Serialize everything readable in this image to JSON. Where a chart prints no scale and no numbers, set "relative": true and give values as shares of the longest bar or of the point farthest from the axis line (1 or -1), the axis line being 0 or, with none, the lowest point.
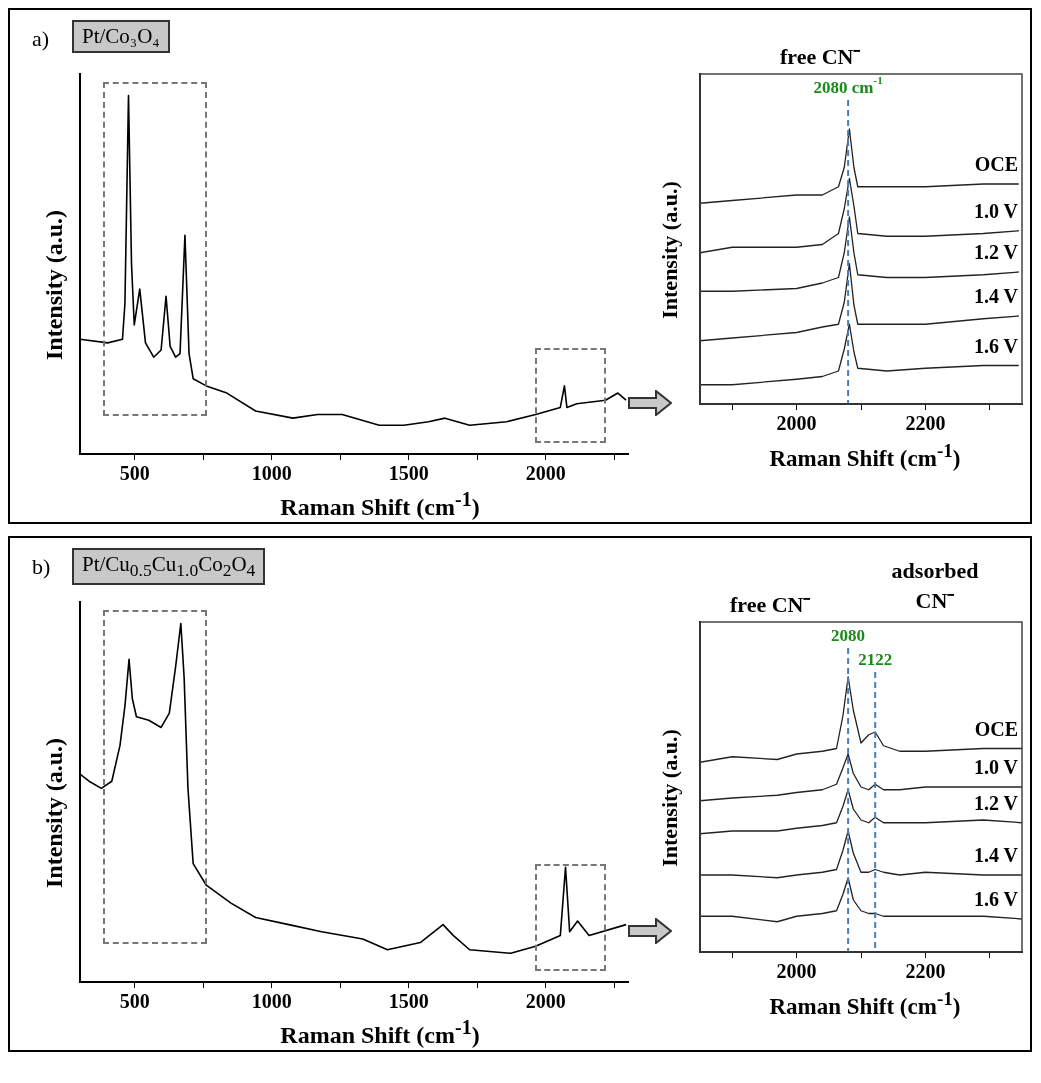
{
  "chart_data": [
    {
      "type": "line",
      "title": "Pt/Co₃O₄",
      "annotations": [
        "a)"
      ],
      "xlabel": "Raman Shift (cm$^{-1}$)",
      "ylabel": "Intensity (a.u.)",
      "relative": true,
      "xlim": [
        300,
        2300
      ],
      "xticks": [
        500,
        {
          "value": 750,
          "label": null
        },
        1000,
        {
          "value": 1250,
          "label": null
        },
        1500,
        {
          "value": 1750,
          "label": null
        },
        2000,
        {
          "value": 2250,
          "label": null
        }
      ],
      "grid": false,
      "legend": false,
      "marker": "none",
      "line_style": "solid",
      "series": [
        {
          "color": "#000000",
          "x": [
            300,
            401,
            455,
            464,
            477,
            488,
            498,
            518,
            539,
            569,
            596,
            614,
            629,
            649,
            665,
            683,
            698,
            713,
            761,
            836,
            941,
            1077,
            1167,
            1257,
            1392,
            1482,
            1572,
            1632,
            1722,
            1857,
            1963,
            2053,
            2068,
            2077,
            2113,
            2218,
            2263,
            2293
          ],
          "values": [
            0.32,
            0.31,
            0.32,
            0.42,
            1.0,
            0.53,
            0.36,
            0.46,
            0.31,
            0.27,
            0.29,
            0.44,
            0.3,
            0.27,
            0.28,
            0.61,
            0.28,
            0.21,
            0.19,
            0.17,
            0.12,
            0.1,
            0.11,
            0.11,
            0.08,
            0.08,
            0.09,
            0.1,
            0.08,
            0.09,
            0.11,
            0.13,
            0.19,
            0.13,
            0.14,
            0.15,
            0.17,
            0.15
          ]
        }
      ]
    },
    {
      "type": "line",
      "title": "free CN⁻",
      "xlabel": "Raman Shift (cm$^{-1}$)",
      "ylabel": "Intensity (a.u.)",
      "relative": true,
      "xlim": [
        1850,
        2350
      ],
      "xticks": [
        {
          "value": 1900,
          "label": null
        },
        2000,
        {
          "value": 2100,
          "label": null
        },
        2200,
        {
          "value": 2300,
          "label": null
        }
      ],
      "grid": false,
      "legend": false,
      "marker": "none",
      "line_style": "solid",
      "ref_lines": [
        {
          "axis": "x",
          "value": 2080,
          "label": "2080 cm$^{-1}$",
          "color": "#4a7ebb",
          "line_style": "dashed"
        }
      ],
      "series": [
        {
          "name": "OCE",
          "color": "#222222",
          "x": [
            1850,
            1900,
            2000,
            2040,
            2065,
            2074,
            2082,
            2089,
            2095,
            2140,
            2200,
            2290,
            2345
          ],
          "values": [
            0.73,
            0.74,
            0.76,
            0.76,
            0.79,
            0.86,
            1.0,
            0.86,
            0.79,
            0.79,
            0.79,
            0.8,
            0.8
          ]
        },
        {
          "name": "1.0 V",
          "color": "#222222",
          "x": [
            1850,
            1900,
            2000,
            2040,
            2065,
            2074,
            2082,
            2089,
            2095,
            2140,
            2200,
            2290,
            2345
          ],
          "values": [
            0.55,
            0.57,
            0.57,
            0.58,
            0.62,
            0.71,
            0.82,
            0.72,
            0.62,
            0.61,
            0.61,
            0.62,
            0.63
          ]
        },
        {
          "name": "1.2 V",
          "color": "#222222",
          "x": [
            1850,
            1900,
            2000,
            2040,
            2065,
            2074,
            2082,
            2089,
            2095,
            2140,
            2200,
            2290,
            2345
          ],
          "values": [
            0.41,
            0.41,
            0.42,
            0.44,
            0.46,
            0.55,
            0.68,
            0.55,
            0.47,
            0.46,
            0.46,
            0.47,
            0.48
          ]
        },
        {
          "name": "1.4 V",
          "color": "#222222",
          "x": [
            1850,
            1900,
            2000,
            2040,
            2065,
            2074,
            2082,
            2089,
            2095,
            2140,
            2200,
            2290,
            2345
          ],
          "values": [
            0.23,
            0.24,
            0.26,
            0.28,
            0.29,
            0.37,
            0.51,
            0.36,
            0.29,
            0.29,
            0.29,
            0.31,
            0.32
          ]
        },
        {
          "name": "1.6 V",
          "color": "#222222",
          "x": [
            1850,
            1900,
            2000,
            2040,
            2065,
            2074,
            2082,
            2089,
            2095,
            2140,
            2200,
            2290,
            2345
          ],
          "values": [
            0.07,
            0.07,
            0.09,
            0.1,
            0.12,
            0.2,
            0.29,
            0.19,
            0.13,
            0.12,
            0.13,
            0.14,
            0.14
          ]
        }
      ]
    },
    {
      "type": "line",
      "title": "Pt/Cu$_{0.5}$Cu$_{1.0}$Co$_{2}$O$_{4}$",
      "annotations": [
        "b)"
      ],
      "xlabel": "Raman Shift (cm$^{-1}$)",
      "ylabel": "Intensity (a.u.)",
      "relative": true,
      "xlim": [
        300,
        2300
      ],
      "xticks": [
        500,
        {
          "value": 750,
          "label": null
        },
        1000,
        {
          "value": 1250,
          "label": null
        },
        1500,
        {
          "value": 1750,
          "label": null
        },
        2000,
        {
          "value": 2250,
          "label": null
        }
      ],
      "grid": false,
      "legend": false,
      "marker": "none",
      "line_style": "solid",
      "series": [
        {
          "color": "#000000",
          "x": [
            300,
            333,
            378,
            416,
            446,
            464,
            479,
            491,
            506,
            551,
            596,
            626,
            649,
            668,
            680,
            694,
            713,
            761,
            851,
            941,
            1062,
            1182,
            1332,
            1422,
            1542,
            1625,
            1662,
            1722,
            1872,
            1963,
            2053,
            2072,
            2087,
            2116,
            2158,
            2293
          ],
          "values": [
            0.58,
            0.56,
            0.54,
            0.56,
            0.66,
            0.77,
            0.9,
            0.79,
            0.74,
            0.73,
            0.71,
            0.75,
            0.88,
            1.0,
            0.85,
            0.54,
            0.33,
            0.27,
            0.22,
            0.18,
            0.16,
            0.14,
            0.12,
            0.09,
            0.11,
            0.16,
            0.13,
            0.09,
            0.08,
            0.1,
            0.13,
            0.32,
            0.14,
            0.17,
            0.13,
            0.16
          ]
        }
      ]
    },
    {
      "type": "line",
      "title": "free CN⁻",
      "subtitle": "adsorbed CN⁻",
      "xlabel": "Raman Shift (cm$^{-1}$)",
      "ylabel": "Intensity (a.u.)",
      "relative": true,
      "xlim": [
        1850,
        2350
      ],
      "xticks": [
        {
          "value": 1900,
          "label": null
        },
        2000,
        {
          "value": 2100,
          "label": null
        },
        2200,
        {
          "value": 2300,
          "label": null
        }
      ],
      "grid": false,
      "legend": false,
      "marker": "none",
      "line_style": "solid",
      "ref_lines": [
        {
          "axis": "x",
          "value": 2080,
          "label": "2080",
          "color": "#4a7ebb",
          "line_style": "dashed"
        },
        {
          "axis": "x",
          "value": 2122,
          "label": "2122",
          "color": "#4a7ebb",
          "line_style": "dashed"
        }
      ],
      "series": [
        {
          "name": "OCE",
          "color": "#222222",
          "x": [
            1850,
            1900,
            1970,
            2000,
            2040,
            2062,
            2072,
            2080,
            2088,
            2100,
            2112,
            2122,
            2135,
            2160,
            2200,
            2290,
            2350
          ],
          "values": [
            0.69,
            0.71,
            0.7,
            0.72,
            0.73,
            0.74,
            0.86,
            1.0,
            0.88,
            0.76,
            0.79,
            0.8,
            0.75,
            0.73,
            0.73,
            0.74,
            0.74
          ]
        },
        {
          "name": "1.0 V",
          "color": "#222222",
          "x": [
            1850,
            1900,
            1970,
            2000,
            2040,
            2062,
            2072,
            2080,
            2088,
            2100,
            2112,
            2122,
            2135,
            2160,
            2200,
            2290,
            2350
          ],
          "values": [
            0.55,
            0.56,
            0.57,
            0.58,
            0.59,
            0.61,
            0.67,
            0.72,
            0.65,
            0.6,
            0.59,
            0.61,
            0.59,
            0.59,
            0.6,
            0.6,
            0.6
          ]
        },
        {
          "name": "1.2 V",
          "color": "#222222",
          "x": [
            1850,
            1900,
            1970,
            2000,
            2040,
            2062,
            2072,
            2080,
            2088,
            2100,
            2112,
            2122,
            2135,
            2160,
            2200,
            2290,
            2350
          ],
          "values": [
            0.43,
            0.44,
            0.44,
            0.45,
            0.46,
            0.47,
            0.53,
            0.59,
            0.52,
            0.48,
            0.47,
            0.49,
            0.47,
            0.47,
            0.47,
            0.48,
            0.47
          ]
        },
        {
          "name": "1.4 V",
          "color": "#222222",
          "x": [
            1850,
            1900,
            1970,
            2000,
            2040,
            2062,
            2072,
            2080,
            2088,
            2100,
            2112,
            2122,
            2135,
            2160,
            2200,
            2290,
            2350
          ],
          "values": [
            0.28,
            0.28,
            0.27,
            0.28,
            0.29,
            0.3,
            0.37,
            0.44,
            0.36,
            0.29,
            0.29,
            0.3,
            0.29,
            0.28,
            0.29,
            0.28,
            0.28
          ]
        },
        {
          "name": "1.6 V",
          "color": "#222222",
          "x": [
            1850,
            1900,
            1970,
            2000,
            2040,
            2062,
            2072,
            2080,
            2088,
            2100,
            2112,
            2122,
            2135,
            2160,
            2200,
            2290,
            2350
          ],
          "values": [
            0.13,
            0.13,
            0.11,
            0.13,
            0.14,
            0.15,
            0.21,
            0.27,
            0.19,
            0.15,
            0.14,
            0.14,
            0.13,
            0.13,
            0.13,
            0.13,
            0.12
          ]
        }
      ]
    }
  ]
}
